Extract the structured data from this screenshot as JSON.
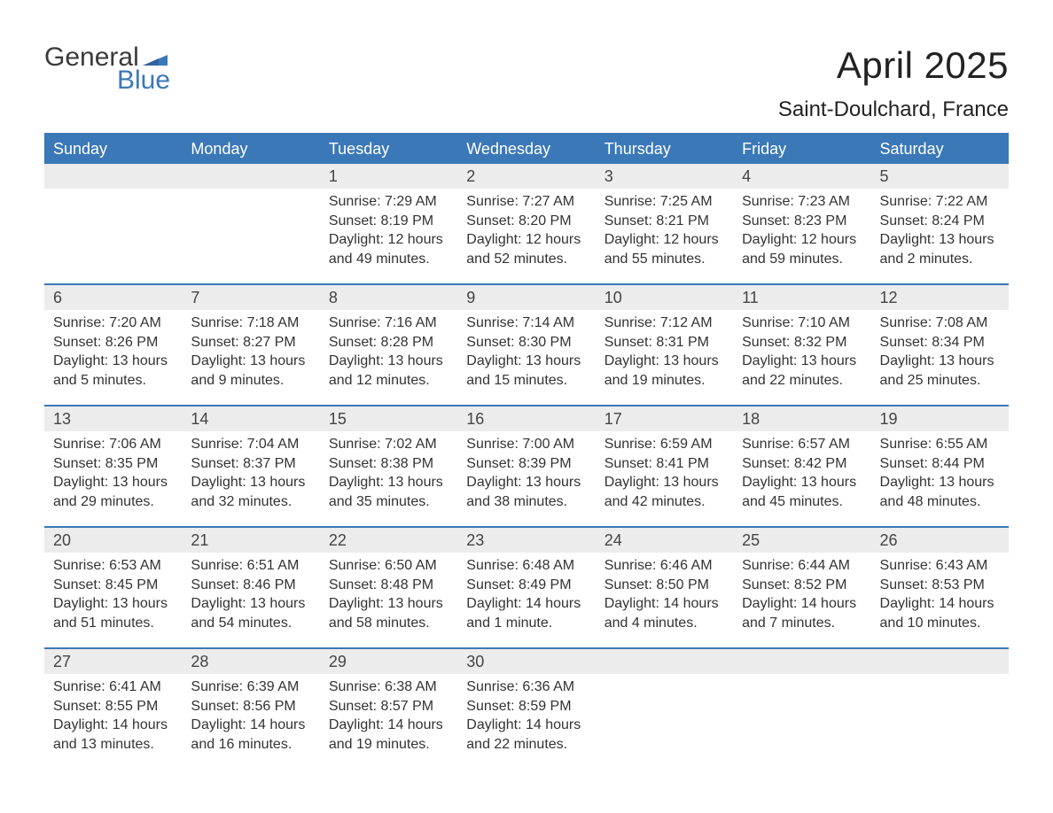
{
  "logo": {
    "word1": "General",
    "word2": "Blue",
    "brand_color": "#3b78b7"
  },
  "title": "April 2025",
  "subtitle": "Saint-Doulchard, France",
  "colors": {
    "header_bg": "#3b78b7",
    "header_text": "#ffffff",
    "daynum_bg": "#ececec",
    "text": "#333333",
    "row_border": "#3b78b7"
  },
  "calendar": {
    "type": "table",
    "day_headers": [
      "Sunday",
      "Monday",
      "Tuesday",
      "Wednesday",
      "Thursday",
      "Friday",
      "Saturday"
    ],
    "weeks": [
      [
        null,
        null,
        {
          "n": "1",
          "sunrise": "Sunrise: 7:29 AM",
          "sunset": "Sunset: 8:19 PM",
          "daylight": "Daylight: 12 hours and 49 minutes."
        },
        {
          "n": "2",
          "sunrise": "Sunrise: 7:27 AM",
          "sunset": "Sunset: 8:20 PM",
          "daylight": "Daylight: 12 hours and 52 minutes."
        },
        {
          "n": "3",
          "sunrise": "Sunrise: 7:25 AM",
          "sunset": "Sunset: 8:21 PM",
          "daylight": "Daylight: 12 hours and 55 minutes."
        },
        {
          "n": "4",
          "sunrise": "Sunrise: 7:23 AM",
          "sunset": "Sunset: 8:23 PM",
          "daylight": "Daylight: 12 hours and 59 minutes."
        },
        {
          "n": "5",
          "sunrise": "Sunrise: 7:22 AM",
          "sunset": "Sunset: 8:24 PM",
          "daylight": "Daylight: 13 hours and 2 minutes."
        }
      ],
      [
        {
          "n": "6",
          "sunrise": "Sunrise: 7:20 AM",
          "sunset": "Sunset: 8:26 PM",
          "daylight": "Daylight: 13 hours and 5 minutes."
        },
        {
          "n": "7",
          "sunrise": "Sunrise: 7:18 AM",
          "sunset": "Sunset: 8:27 PM",
          "daylight": "Daylight: 13 hours and 9 minutes."
        },
        {
          "n": "8",
          "sunrise": "Sunrise: 7:16 AM",
          "sunset": "Sunset: 8:28 PM",
          "daylight": "Daylight: 13 hours and 12 minutes."
        },
        {
          "n": "9",
          "sunrise": "Sunrise: 7:14 AM",
          "sunset": "Sunset: 8:30 PM",
          "daylight": "Daylight: 13 hours and 15 minutes."
        },
        {
          "n": "10",
          "sunrise": "Sunrise: 7:12 AM",
          "sunset": "Sunset: 8:31 PM",
          "daylight": "Daylight: 13 hours and 19 minutes."
        },
        {
          "n": "11",
          "sunrise": "Sunrise: 7:10 AM",
          "sunset": "Sunset: 8:32 PM",
          "daylight": "Daylight: 13 hours and 22 minutes."
        },
        {
          "n": "12",
          "sunrise": "Sunrise: 7:08 AM",
          "sunset": "Sunset: 8:34 PM",
          "daylight": "Daylight: 13 hours and 25 minutes."
        }
      ],
      [
        {
          "n": "13",
          "sunrise": "Sunrise: 7:06 AM",
          "sunset": "Sunset: 8:35 PM",
          "daylight": "Daylight: 13 hours and 29 minutes."
        },
        {
          "n": "14",
          "sunrise": "Sunrise: 7:04 AM",
          "sunset": "Sunset: 8:37 PM",
          "daylight": "Daylight: 13 hours and 32 minutes."
        },
        {
          "n": "15",
          "sunrise": "Sunrise: 7:02 AM",
          "sunset": "Sunset: 8:38 PM",
          "daylight": "Daylight: 13 hours and 35 minutes."
        },
        {
          "n": "16",
          "sunrise": "Sunrise: 7:00 AM",
          "sunset": "Sunset: 8:39 PM",
          "daylight": "Daylight: 13 hours and 38 minutes."
        },
        {
          "n": "17",
          "sunrise": "Sunrise: 6:59 AM",
          "sunset": "Sunset: 8:41 PM",
          "daylight": "Daylight: 13 hours and 42 minutes."
        },
        {
          "n": "18",
          "sunrise": "Sunrise: 6:57 AM",
          "sunset": "Sunset: 8:42 PM",
          "daylight": "Daylight: 13 hours and 45 minutes."
        },
        {
          "n": "19",
          "sunrise": "Sunrise: 6:55 AM",
          "sunset": "Sunset: 8:44 PM",
          "daylight": "Daylight: 13 hours and 48 minutes."
        }
      ],
      [
        {
          "n": "20",
          "sunrise": "Sunrise: 6:53 AM",
          "sunset": "Sunset: 8:45 PM",
          "daylight": "Daylight: 13 hours and 51 minutes."
        },
        {
          "n": "21",
          "sunrise": "Sunrise: 6:51 AM",
          "sunset": "Sunset: 8:46 PM",
          "daylight": "Daylight: 13 hours and 54 minutes."
        },
        {
          "n": "22",
          "sunrise": "Sunrise: 6:50 AM",
          "sunset": "Sunset: 8:48 PM",
          "daylight": "Daylight: 13 hours and 58 minutes."
        },
        {
          "n": "23",
          "sunrise": "Sunrise: 6:48 AM",
          "sunset": "Sunset: 8:49 PM",
          "daylight": "Daylight: 14 hours and 1 minute."
        },
        {
          "n": "24",
          "sunrise": "Sunrise: 6:46 AM",
          "sunset": "Sunset: 8:50 PM",
          "daylight": "Daylight: 14 hours and 4 minutes."
        },
        {
          "n": "25",
          "sunrise": "Sunrise: 6:44 AM",
          "sunset": "Sunset: 8:52 PM",
          "daylight": "Daylight: 14 hours and 7 minutes."
        },
        {
          "n": "26",
          "sunrise": "Sunrise: 6:43 AM",
          "sunset": "Sunset: 8:53 PM",
          "daylight": "Daylight: 14 hours and 10 minutes."
        }
      ],
      [
        {
          "n": "27",
          "sunrise": "Sunrise: 6:41 AM",
          "sunset": "Sunset: 8:55 PM",
          "daylight": "Daylight: 14 hours and 13 minutes."
        },
        {
          "n": "28",
          "sunrise": "Sunrise: 6:39 AM",
          "sunset": "Sunset: 8:56 PM",
          "daylight": "Daylight: 14 hours and 16 minutes."
        },
        {
          "n": "29",
          "sunrise": "Sunrise: 6:38 AM",
          "sunset": "Sunset: 8:57 PM",
          "daylight": "Daylight: 14 hours and 19 minutes."
        },
        {
          "n": "30",
          "sunrise": "Sunrise: 6:36 AM",
          "sunset": "Sunset: 8:59 PM",
          "daylight": "Daylight: 14 hours and 22 minutes."
        },
        null,
        null,
        null
      ]
    ]
  }
}
